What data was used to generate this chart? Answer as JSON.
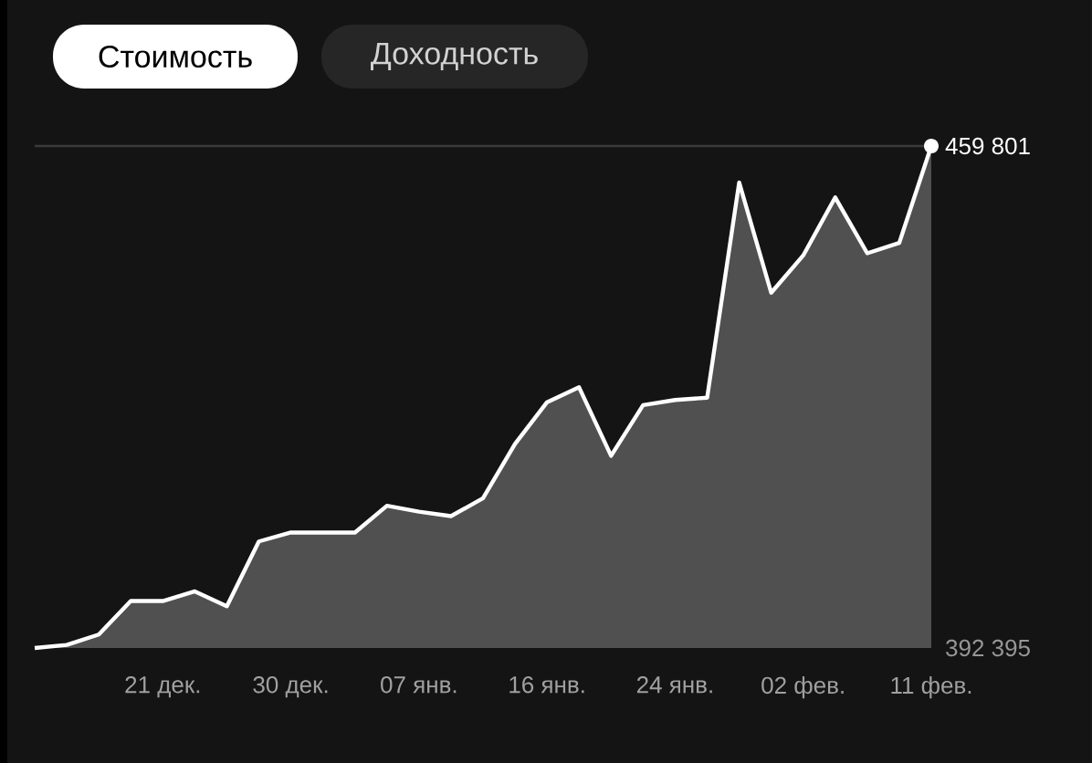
{
  "chart_data": {
    "type": "area",
    "title": "Стоимость",
    "subtitle": "Доходность",
    "categories": [
      null,
      null,
      null,
      null,
      "21 дек.",
      null,
      null,
      null,
      "30 дек.",
      null,
      null,
      null,
      "07 янв.",
      null,
      null,
      null,
      "16 янв.",
      null,
      null,
      null,
      "24 янв.",
      null,
      null,
      null,
      "02 фев.",
      null,
      null,
      null,
      "11 фев."
    ],
    "values": [
      392395,
      392800,
      394200,
      398700,
      398700,
      400000,
      398000,
      406700,
      407900,
      407900,
      407900,
      411500,
      410700,
      410100,
      412500,
      419800,
      425400,
      427400,
      418200,
      425000,
      425700,
      426000,
      454900,
      440100,
      445100,
      452900,
      445400,
      446800,
      459801
    ],
    "color": "#ffffff",
    "ylim": [
      392395,
      459801
    ],
    "yticks": [
      {
        "value": 392395,
        "label": "392 395"
      },
      {
        "value": 459801,
        "label": "459 801"
      }
    ],
    "ref_lines": [
      {
        "axis": "y",
        "value": 459801,
        "color": "#3a3a3a"
      }
    ]
  }
}
